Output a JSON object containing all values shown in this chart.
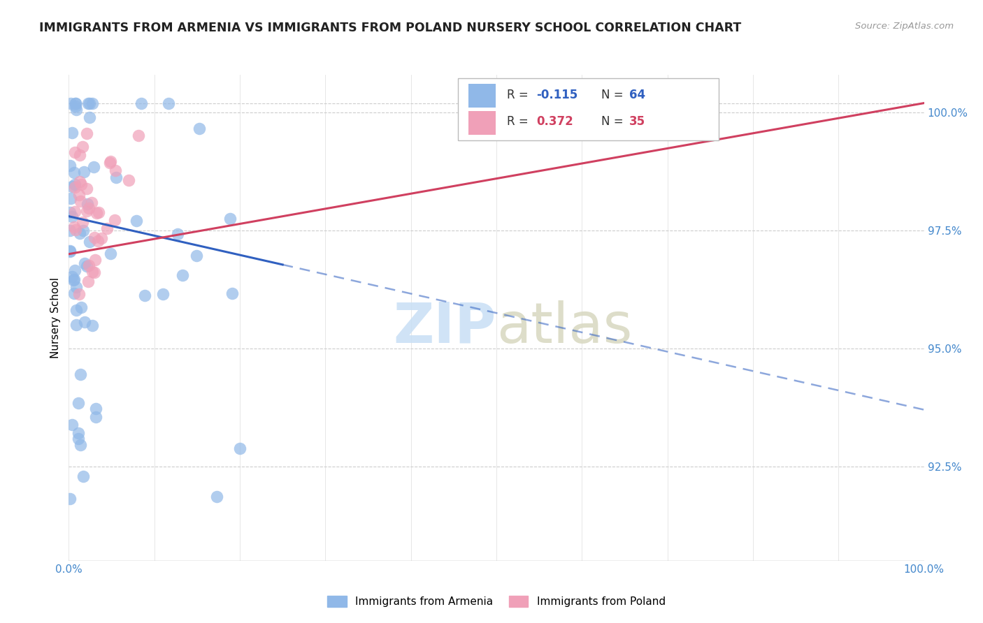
{
  "title": "IMMIGRANTS FROM ARMENIA VS IMMIGRANTS FROM POLAND NURSERY SCHOOL CORRELATION CHART",
  "source": "Source: ZipAtlas.com",
  "ylabel": "Nursery School",
  "ytick_labels": [
    "92.5%",
    "95.0%",
    "97.5%",
    "100.0%"
  ],
  "ytick_values": [
    0.925,
    0.95,
    0.975,
    1.0
  ],
  "xlim": [
    0.0,
    1.0
  ],
  "ylim": [
    0.905,
    1.008
  ],
  "armenia_color": "#90b8e8",
  "poland_color": "#f0a0b8",
  "trend_armenia_color": "#3060c0",
  "trend_poland_color": "#d04060",
  "armenia_R": -0.115,
  "armenia_N": 64,
  "poland_R": 0.372,
  "poland_N": 35,
  "arm_trend_start_x": 0.0,
  "arm_trend_solid_end_x": 0.25,
  "arm_trend_end_x": 1.0,
  "arm_trend_start_y": 0.978,
  "arm_trend_end_y": 0.937,
  "pol_trend_start_x": 0.0,
  "pol_trend_end_x": 1.0,
  "pol_trend_start_y": 0.97,
  "pol_trend_end_y": 1.002
}
